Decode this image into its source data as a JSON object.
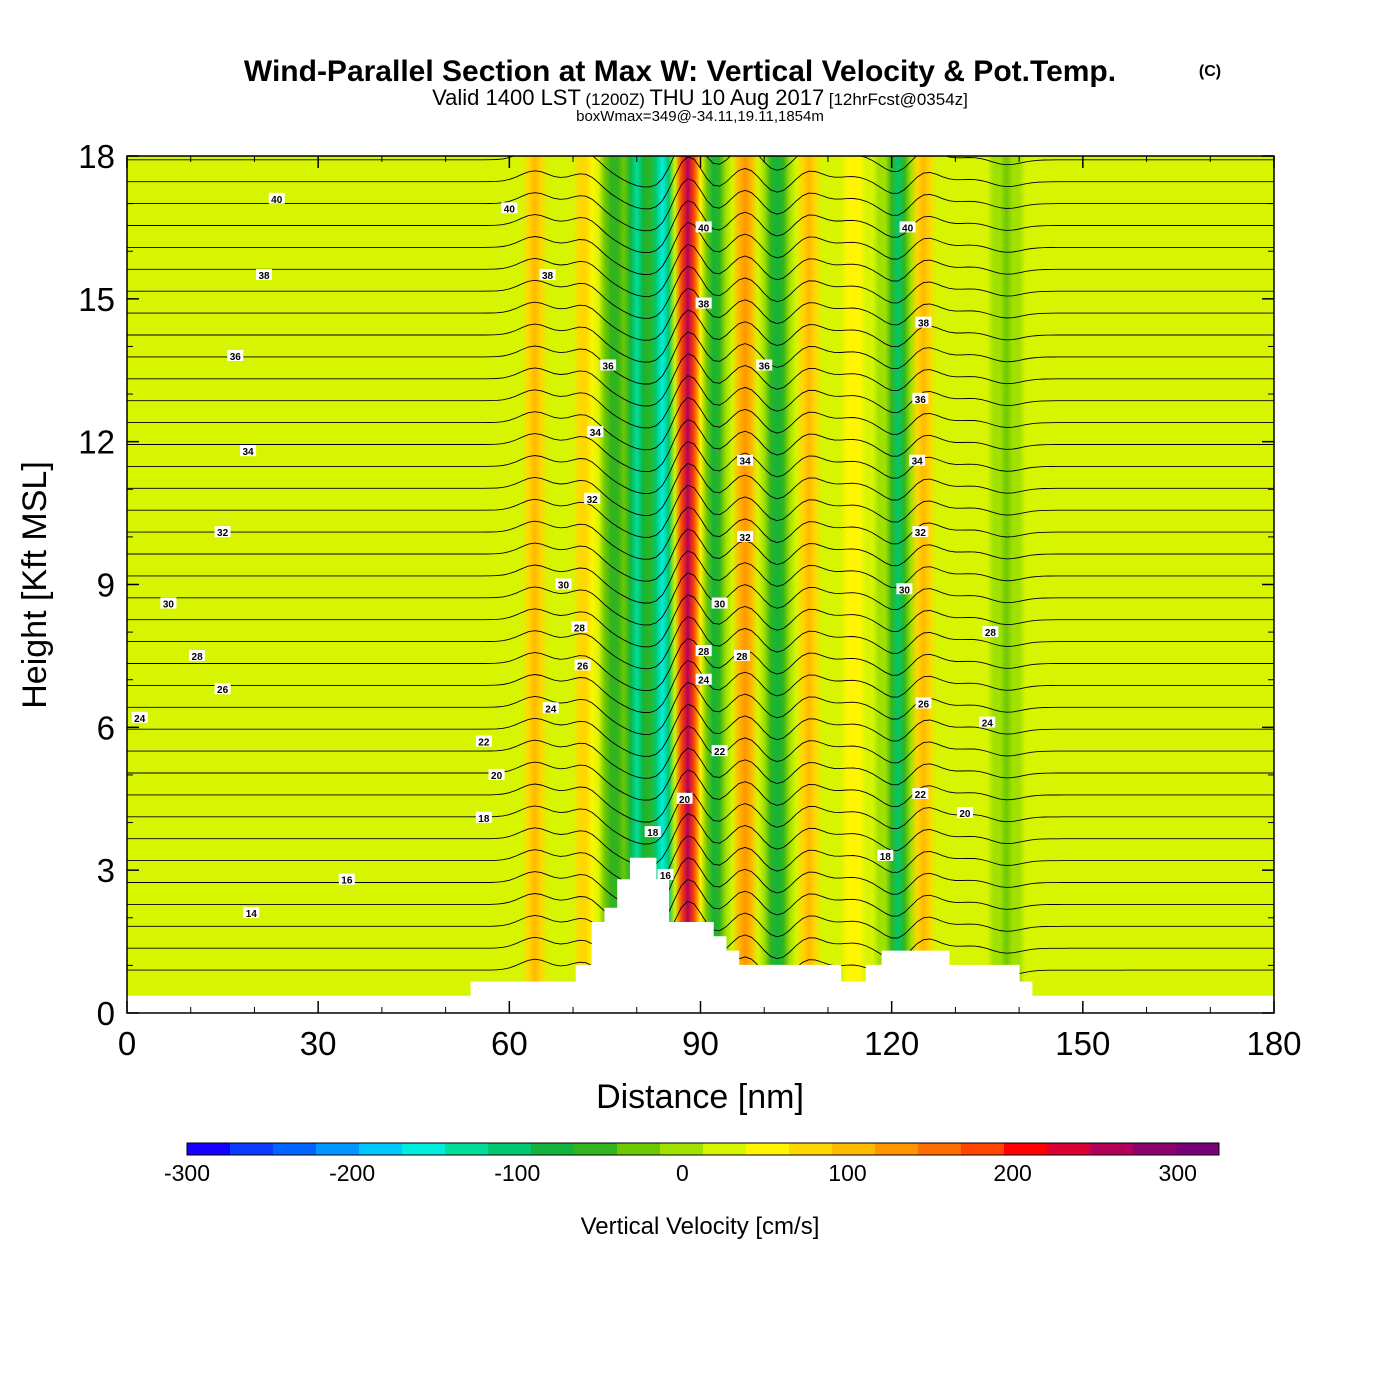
{
  "title": {
    "main": "Wind-Parallel Section at Max W: Vertical Velocity & Pot.Temp.",
    "copyright": "(C)",
    "valid_prefix": "Valid 1400 LST",
    "utc": "(1200Z)",
    "date": "THU 10 Aug 2017",
    "fcst": "[12hrFcst@0354z]",
    "boxwmax": "boxWmax=349@-34.11,19.11,1854m"
  },
  "chart_data": {
    "type": "heatmap",
    "xlabel": "Distance [nm]",
    "ylabel": "Height [Kft MSL]",
    "xlim": [
      0,
      180
    ],
    "ylim": [
      0,
      18
    ],
    "x_ticks": [
      "0",
      "30",
      "60",
      "90",
      "120",
      "150",
      "180"
    ],
    "y_ticks": [
      "0",
      "3",
      "6",
      "9",
      "12",
      "15",
      "18"
    ],
    "colorbar": {
      "label": "Vertical Velocity [cm/s]",
      "range": [
        -300,
        325
      ],
      "tick_labels": [
        "-300",
        "-200",
        "-100",
        "0",
        "100",
        "200",
        "300"
      ],
      "colors": [
        "#1400ff",
        "#0a3cff",
        "#0064ff",
        "#0096ff",
        "#00c8ff",
        "#00eedd",
        "#00dd9a",
        "#00c86e",
        "#12b43c",
        "#32b41e",
        "#6ec800",
        "#a0e100",
        "#d7f500",
        "#fff500",
        "#ffd700",
        "#ffb900",
        "#ff9600",
        "#ff6e00",
        "#ff4600",
        "#ff0000",
        "#dc0032",
        "#b4005a",
        "#8c006e",
        "#780078"
      ]
    },
    "velocity_bands": [
      {
        "x": 64,
        "w": 85
      },
      {
        "x": 72,
        "w": 75
      },
      {
        "x": 76,
        "w": -80
      },
      {
        "x": 80,
        "w": -150
      },
      {
        "x": 84,
        "w": -170
      },
      {
        "x": 88,
        "w": 250
      },
      {
        "x": 92,
        "w": -90
      },
      {
        "x": 97,
        "w": 120
      },
      {
        "x": 102,
        "w": -100
      },
      {
        "x": 107,
        "w": 90
      },
      {
        "x": 114,
        "w": 40
      },
      {
        "x": 121,
        "w": -110
      },
      {
        "x": 125,
        "w": 90
      },
      {
        "x": 133,
        "w": 20
      },
      {
        "x": 138,
        "w": -40
      }
    ],
    "terrain": [
      [
        0,
        0.35
      ],
      [
        54,
        0.35
      ],
      [
        54,
        0.65
      ],
      [
        60,
        0.65
      ],
      [
        60,
        0.65
      ],
      [
        70.5,
        0.65
      ],
      [
        70.5,
        1.0
      ],
      [
        73,
        1.0
      ],
      [
        73,
        1.9
      ],
      [
        75,
        1.9
      ],
      [
        75,
        2.2
      ],
      [
        77,
        2.2
      ],
      [
        77,
        2.8
      ],
      [
        79,
        2.8
      ],
      [
        79,
        3.25
      ],
      [
        83,
        3.25
      ],
      [
        83,
        2.8
      ],
      [
        85,
        2.8
      ],
      [
        85,
        1.9
      ],
      [
        92,
        1.9
      ],
      [
        92,
        1.6
      ],
      [
        94,
        1.6
      ],
      [
        94,
        1.3
      ],
      [
        96,
        1.3
      ],
      [
        96,
        1.0
      ],
      [
        112,
        1.0
      ],
      [
        112,
        0.65
      ],
      [
        116,
        0.65
      ],
      [
        116,
        1.0
      ],
      [
        118.5,
        1.0
      ],
      [
        118.5,
        1.3
      ],
      [
        129,
        1.3
      ],
      [
        129,
        1.0
      ],
      [
        140,
        1.0
      ],
      [
        140,
        0.65
      ],
      [
        142,
        0.65
      ],
      [
        142,
        0.35
      ],
      [
        180,
        0.35
      ]
    ],
    "theta_contours": {
      "levels": [
        "14",
        "16",
        "18",
        "20",
        "22",
        "24",
        "26",
        "28",
        "30",
        "32",
        "34",
        "36",
        "38",
        "40"
      ],
      "labels": [
        {
          "t": "40",
          "x": 23.5,
          "y": 17.1
        },
        {
          "t": "40",
          "x": 60,
          "y": 16.9
        },
        {
          "t": "40",
          "x": 90.5,
          "y": 16.5
        },
        {
          "t": "40",
          "x": 122.5,
          "y": 16.5
        },
        {
          "t": "38",
          "x": 21.5,
          "y": 15.5
        },
        {
          "t": "38",
          "x": 66,
          "y": 15.5
        },
        {
          "t": "38",
          "x": 90.5,
          "y": 14.9
        },
        {
          "t": "38",
          "x": 125,
          "y": 14.5
        },
        {
          "t": "36",
          "x": 17,
          "y": 13.8
        },
        {
          "t": "36",
          "x": 75.5,
          "y": 13.6
        },
        {
          "t": "36",
          "x": 100,
          "y": 13.6
        },
        {
          "t": "36",
          "x": 124.5,
          "y": 12.9
        },
        {
          "t": "34",
          "x": 19,
          "y": 11.8
        },
        {
          "t": "34",
          "x": 73.5,
          "y": 12.2
        },
        {
          "t": "34",
          "x": 97,
          "y": 11.6
        },
        {
          "t": "34",
          "x": 124,
          "y": 11.6
        },
        {
          "t": "32",
          "x": 15,
          "y": 10.1
        },
        {
          "t": "32",
          "x": 73,
          "y": 10.8
        },
        {
          "t": "32",
          "x": 97,
          "y": 10.0
        },
        {
          "t": "32",
          "x": 124.5,
          "y": 10.1
        },
        {
          "t": "30",
          "x": 6.5,
          "y": 8.6
        },
        {
          "t": "30",
          "x": 68.5,
          "y": 9.0
        },
        {
          "t": "30",
          "x": 93,
          "y": 8.6
        },
        {
          "t": "30",
          "x": 122,
          "y": 8.9
        },
        {
          "t": "28",
          "x": 11,
          "y": 7.5
        },
        {
          "t": "28",
          "x": 71,
          "y": 8.1
        },
        {
          "t": "28",
          "x": 90.5,
          "y": 7.6
        },
        {
          "t": "28",
          "x": 96.5,
          "y": 7.5
        },
        {
          "t": "28",
          "x": 135.5,
          "y": 8.0
        },
        {
          "t": "26",
          "x": 15,
          "y": 6.8
        },
        {
          "t": "26",
          "x": 71.5,
          "y": 7.3
        },
        {
          "t": "26",
          "x": 125,
          "y": 6.5
        },
        {
          "t": "24",
          "x": 2,
          "y": 6.2
        },
        {
          "t": "24",
          "x": 66.5,
          "y": 6.4
        },
        {
          "t": "24",
          "x": 90.5,
          "y": 7.0
        },
        {
          "t": "24",
          "x": 135,
          "y": 6.1
        },
        {
          "t": "22",
          "x": 56,
          "y": 5.7
        },
        {
          "t": "22",
          "x": 93,
          "y": 5.5
        },
        {
          "t": "22",
          "x": 124.5,
          "y": 4.6
        },
        {
          "t": "20",
          "x": 58,
          "y": 5.0
        },
        {
          "t": "20",
          "x": 87.5,
          "y": 4.5
        },
        {
          "t": "20",
          "x": 131.5,
          "y": 4.2
        },
        {
          "t": "18",
          "x": 56,
          "y": 4.1
        },
        {
          "t": "18",
          "x": 82.5,
          "y": 3.8
        },
        {
          "t": "18",
          "x": 119,
          "y": 3.3
        },
        {
          "t": "16",
          "x": 34.5,
          "y": 2.8
        },
        {
          "t": "16",
          "x": 84.5,
          "y": 2.9
        },
        {
          "t": "14",
          "x": 19.5,
          "y": 2.1
        }
      ]
    }
  }
}
